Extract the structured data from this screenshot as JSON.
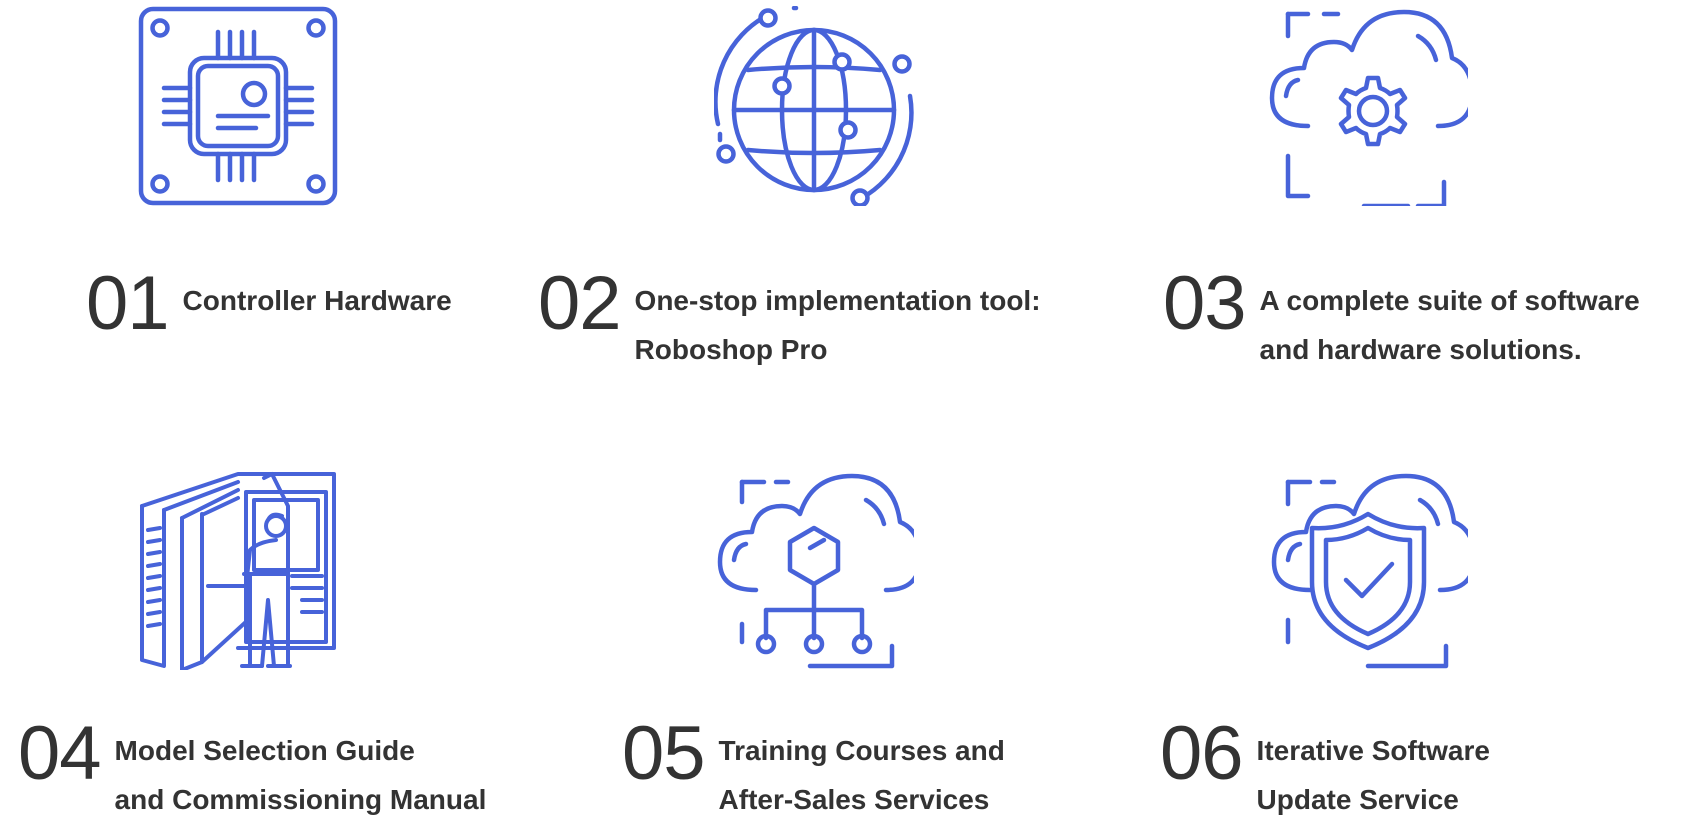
{
  "accent_color": "#4763d9",
  "text_color": "#333333",
  "items": [
    {
      "number": "01",
      "line1": "Controller Hardware",
      "line2": "",
      "icon": "chip-icon"
    },
    {
      "number": "02",
      "line1": "One-stop implementation tool:",
      "line2": "Roboshop Pro",
      "icon": "globe-network-icon"
    },
    {
      "number": "03",
      "line1": "A complete suite of software",
      "line2": "and hardware solutions.",
      "icon": "cloud-gear-icon"
    },
    {
      "number": "04",
      "line1": "Model Selection Guide",
      "line2": "and Commissioning Manual",
      "icon": "manual-reader-icon"
    },
    {
      "number": "05",
      "line1": "Training Courses and",
      "line2": "After-Sales Services",
      "icon": "cloud-network-icon"
    },
    {
      "number": "06",
      "line1": "Iterative Software",
      "line2": "Update Service",
      "icon": "cloud-shield-icon"
    }
  ]
}
